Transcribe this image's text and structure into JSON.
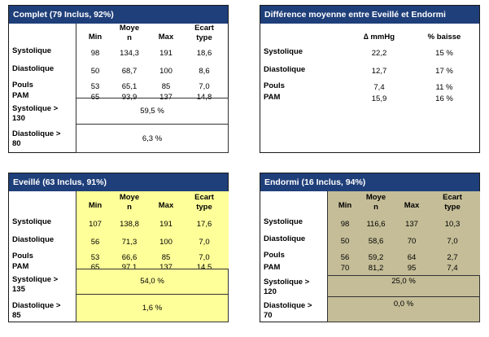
{
  "headers": {
    "min": "Min",
    "moyen_l1": "Moye",
    "moyen_l2": "n",
    "max": "Max",
    "ecart_l1": "Ecart",
    "ecart_l2": "type",
    "delta": "∆ mmHg",
    "baisse": "% baisse"
  },
  "row_labels": {
    "systolique": "Systolique",
    "diastolique": "Diastolique",
    "pouls": "Pouls",
    "pam": "PAM"
  },
  "complet": {
    "title": "Complet (79 Inclus, 92%)",
    "rows": [
      {
        "min": "98",
        "moyen": "134,3",
        "max": "191",
        "ecart": "18,6"
      },
      {
        "min": "50",
        "moyen": "68,7",
        "max": "100",
        "ecart": "8,6"
      },
      {
        "min": "53",
        "moyen": "65,1",
        "max": "85",
        "ecart": "7,0"
      },
      {
        "min": "65",
        "moyen": "93,9",
        "max": "137",
        "ecart": "14,8"
      }
    ],
    "thr1_label_l1": "Systolique >",
    "thr1_label_l2": "130",
    "thr1_value": "59,5 %",
    "thr2_label_l1": "Diastolique >",
    "thr2_label_l2": "80",
    "thr2_value": "6,3 %"
  },
  "difference": {
    "title": "Différence moyenne entre Eveillé et Endormi",
    "rows": [
      {
        "delta": "22,2",
        "baisse": "15 %"
      },
      {
        "delta": "12,7",
        "baisse": "17 %"
      },
      {
        "delta": "7,4",
        "baisse": "11 %"
      },
      {
        "delta": "15,9",
        "baisse": "16 %"
      }
    ]
  },
  "eveille": {
    "title": "Eveillé (63 Inclus, 91%)",
    "rows": [
      {
        "min": "107",
        "moyen": "138,8",
        "max": "191",
        "ecart": "17,6"
      },
      {
        "min": "56",
        "moyen": "71,3",
        "max": "100",
        "ecart": "7,0"
      },
      {
        "min": "53",
        "moyen": "66,6",
        "max": "85",
        "ecart": "7,0"
      },
      {
        "min": "65",
        "moyen": "97,1",
        "max": "137",
        "ecart": "14,5"
      }
    ],
    "thr1_label_l1": "Systolique >",
    "thr1_label_l2": "135",
    "thr1_value": "54,0 %",
    "thr2_label_l1": "Diastolique >",
    "thr2_label_l2": "85",
    "thr2_value": "1,6 %"
  },
  "endormi": {
    "title": "Endormi (16 Inclus, 94%)",
    "rows": [
      {
        "min": "98",
        "moyen": "116,6",
        "max": "137",
        "ecart": "10,3"
      },
      {
        "min": "50",
        "moyen": "58,6",
        "max": "70",
        "ecart": "7,0"
      },
      {
        "min": "56",
        "moyen": "59,2",
        "max": "64",
        "ecart": "2,7"
      },
      {
        "min": "70",
        "moyen": "81,2",
        "max": "95",
        "ecart": "7,4"
      }
    ],
    "thr1_label_l1": "Systolique >",
    "thr1_label_l2": "120",
    "thr1_value": "25,0 %",
    "thr2_label_l1": "Diastolique >",
    "thr2_label_l2": "70",
    "thr2_value": "0,0 %"
  },
  "colors": {
    "header_bg": "#1f3f7a",
    "eveille_fill": "#ffff99",
    "endormi_fill": "#c4bd97"
  }
}
